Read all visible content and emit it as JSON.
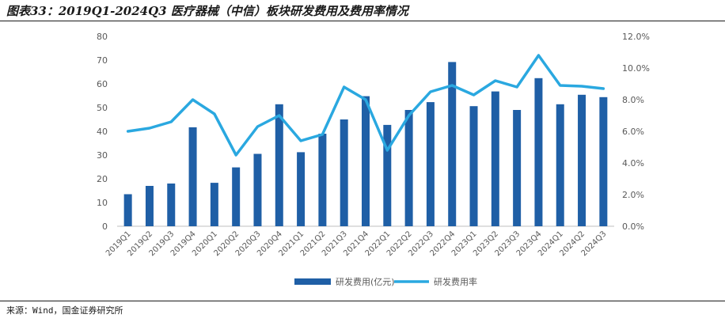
{
  "title": "图表33：2019Q1-2024Q3 医疗器械（中信）板块研发费用及费用率情况",
  "source": "来源：Wind，国金证券研究所",
  "colors": {
    "bar": "#1f5fa6",
    "line": "#2aa8e0",
    "axis": "#bfbfbf",
    "text": "#595959"
  },
  "chart_data": {
    "type": "bar",
    "categories": [
      "2019Q1",
      "2019Q2",
      "2019Q3",
      "2019Q4",
      "2020Q1",
      "2020Q2",
      "2020Q3",
      "2020Q4",
      "2021Q1",
      "2021Q2",
      "2021Q3",
      "2021Q4",
      "2022Q1",
      "2022Q2",
      "2022Q3",
      "2022Q4",
      "2023Q1",
      "2023Q2",
      "2023Q3",
      "2023Q4",
      "2024Q1",
      "2024Q2",
      "2024Q3"
    ],
    "series": [
      {
        "name": "研发费用(亿元)",
        "type": "bar",
        "axis": "left",
        "values": [
          13.5,
          17,
          18,
          41.7,
          18.3,
          24.8,
          30.5,
          51.4,
          31.2,
          39,
          45,
          54.8,
          42.7,
          49,
          52.3,
          69.2,
          50.6,
          56.8,
          49,
          62.4,
          51.4,
          55.4,
          54.4
        ]
      },
      {
        "name": "研发费用率",
        "type": "line",
        "axis": "right",
        "values": [
          6.0,
          6.2,
          6.6,
          8.0,
          7.1,
          4.5,
          6.3,
          7.0,
          5.4,
          5.8,
          8.8,
          8.0,
          4.8,
          7.0,
          8.5,
          8.9,
          8.3,
          9.2,
          8.8,
          10.8,
          8.9,
          8.85,
          8.7
        ]
      }
    ],
    "y_left": {
      "min": 0,
      "max": 80,
      "ticks": [
        "0",
        "10",
        "20",
        "30",
        "40",
        "50",
        "60",
        "70",
        "80"
      ]
    },
    "y_right": {
      "min": 0,
      "max": 12,
      "ticks": [
        "0.0%",
        "2.0%",
        "4.0%",
        "6.0%",
        "8.0%",
        "10.0%",
        "12.0%"
      ]
    },
    "legend_position": "bottom",
    "grid": false
  }
}
